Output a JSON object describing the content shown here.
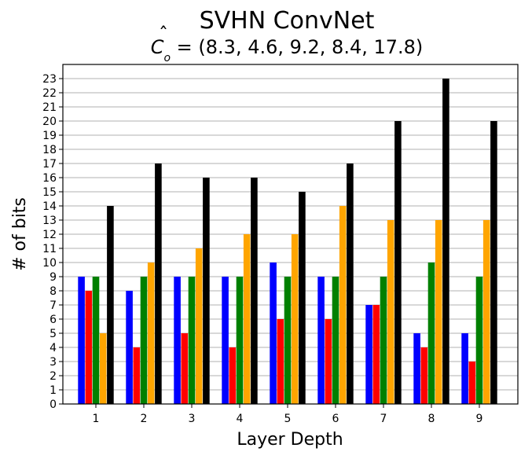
{
  "chart_data": {
    "type": "bar",
    "title": "SVHN ConvNet",
    "subtitle_main": "C",
    "subtitle_hat": "ˆ",
    "subtitle_sub": "o",
    "subtitle_rest": " = (8.3, 4.6, 9.2, 8.4, 17.8)",
    "xlabel": "Layer Depth",
    "ylabel": "# of bits",
    "categories": [
      "1",
      "2",
      "3",
      "4",
      "5",
      "6",
      "7",
      "8",
      "9"
    ],
    "ylim": [
      0,
      24
    ],
    "yticks": [
      0,
      1,
      2,
      3,
      4,
      5,
      6,
      7,
      8,
      9,
      10,
      11,
      12,
      13,
      14,
      15,
      16,
      17,
      18,
      19,
      20,
      21,
      22,
      23
    ],
    "grid": "horizontal",
    "series": [
      {
        "color": "#0000ff",
        "values": [
          9,
          8,
          9,
          9,
          10,
          9,
          7,
          5,
          5
        ]
      },
      {
        "color": "#ff0000",
        "values": [
          8,
          4,
          5,
          4,
          6,
          6,
          7,
          4,
          3
        ]
      },
      {
        "color": "#008000",
        "values": [
          9,
          9,
          9,
          9,
          9,
          9,
          9,
          10,
          9
        ]
      },
      {
        "color": "#ffa500",
        "values": [
          5,
          10,
          11,
          12,
          12,
          14,
          13,
          13,
          13
        ]
      },
      {
        "color": "#000000",
        "values": [
          14,
          17,
          16,
          16,
          15,
          17,
          20,
          23,
          20
        ]
      }
    ]
  }
}
